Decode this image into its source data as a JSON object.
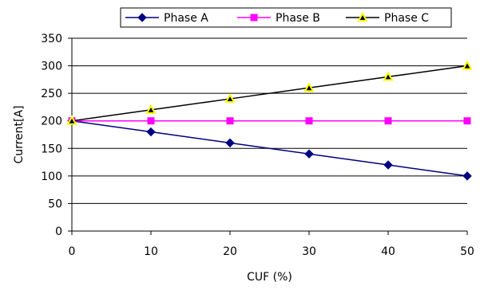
{
  "chart_data": {
    "type": "line",
    "title": "",
    "xlabel": "CUF (%)",
    "ylabel": "Current[A]",
    "x": [
      0,
      10,
      20,
      30,
      40,
      50
    ],
    "xlim": [
      0,
      50
    ],
    "ylim": [
      0,
      350
    ],
    "xticks": [
      "0",
      "10",
      "20",
      "30",
      "40",
      "50"
    ],
    "yticks": [
      "0",
      "50",
      "100",
      "150",
      "200",
      "250",
      "300",
      "350"
    ],
    "grid": "horizontal",
    "legend_position": "top",
    "series": [
      {
        "name": "Phase A",
        "values": [
          200,
          180,
          160,
          140,
          120,
          100
        ],
        "line_color": "#000080",
        "marker": "diamond",
        "marker_color": "#000080"
      },
      {
        "name": "Phase B",
        "values": [
          200,
          200,
          200,
          200,
          200,
          200
        ],
        "line_color": "#ff00ff",
        "marker": "square",
        "marker_color": "#ff00ff"
      },
      {
        "name": "Phase C",
        "values": [
          200,
          220,
          240,
          260,
          280,
          300
        ],
        "line_color": "#000000",
        "marker": "triangle",
        "marker_color": "#000000",
        "marker_fill": "#ffff00"
      }
    ]
  }
}
